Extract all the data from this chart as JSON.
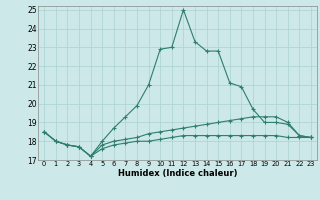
{
  "xlabel": "Humidex (Indice chaleur)",
  "xlim": [
    -0.5,
    23.5
  ],
  "ylim": [
    17,
    25.2
  ],
  "yticks": [
    17,
    18,
    19,
    20,
    21,
    22,
    23,
    24,
    25
  ],
  "xticks": [
    0,
    1,
    2,
    3,
    4,
    5,
    6,
    7,
    8,
    9,
    10,
    11,
    12,
    13,
    14,
    15,
    16,
    17,
    18,
    19,
    20,
    21,
    22,
    23
  ],
  "bg_color": "#cce8e8",
  "grid_color": "#b0d4d4",
  "line_color": "#2e7d6e",
  "line1_x": [
    0,
    1,
    2,
    3,
    4,
    5,
    6,
    7,
    8,
    9,
    10,
    11,
    12,
    13,
    14,
    15,
    16,
    17,
    18,
    19,
    20,
    21,
    22,
    23
  ],
  "line1_y": [
    18.5,
    18.0,
    17.8,
    17.7,
    17.2,
    18.0,
    18.7,
    19.3,
    19.9,
    21.0,
    22.9,
    23.0,
    25.0,
    23.3,
    22.8,
    22.8,
    21.1,
    20.9,
    19.7,
    19.0,
    19.0,
    18.9,
    18.3,
    18.2
  ],
  "line2_x": [
    0,
    1,
    2,
    3,
    4,
    5,
    6,
    7,
    8,
    9,
    10,
    11,
    12,
    13,
    14,
    15,
    16,
    17,
    18,
    19,
    20,
    21,
    22,
    23
  ],
  "line2_y": [
    18.5,
    18.0,
    17.8,
    17.7,
    17.2,
    17.8,
    18.0,
    18.1,
    18.2,
    18.4,
    18.5,
    18.6,
    18.7,
    18.8,
    18.9,
    19.0,
    19.1,
    19.2,
    19.3,
    19.3,
    19.3,
    19.0,
    18.3,
    18.2
  ],
  "line3_x": [
    0,
    1,
    2,
    3,
    4,
    5,
    6,
    7,
    8,
    9,
    10,
    11,
    12,
    13,
    14,
    15,
    16,
    17,
    18,
    19,
    20,
    21,
    22,
    23
  ],
  "line3_y": [
    18.5,
    18.0,
    17.8,
    17.7,
    17.2,
    17.6,
    17.8,
    17.9,
    18.0,
    18.0,
    18.1,
    18.2,
    18.3,
    18.3,
    18.3,
    18.3,
    18.3,
    18.3,
    18.3,
    18.3,
    18.3,
    18.2,
    18.2,
    18.2
  ]
}
